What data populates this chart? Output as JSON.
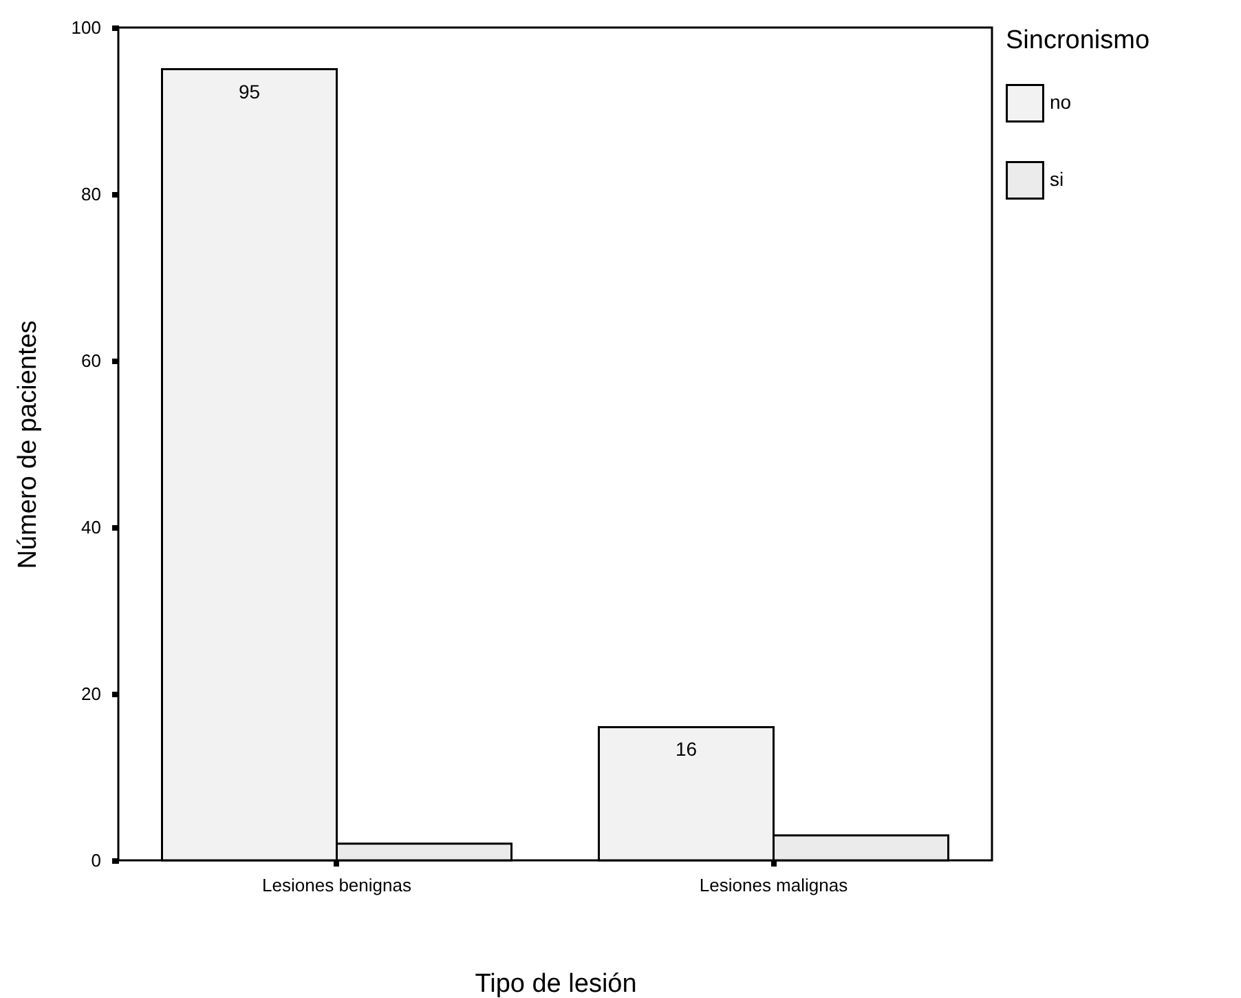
{
  "chart_data": {
    "type": "bar",
    "xlabel": "Tipo de lesión",
    "ylabel": "Número de pacientes",
    "legend_title": "Sincronismo",
    "legend": "right",
    "grid": false,
    "categories": [
      "Lesiones benignas",
      "Lesiones malignas"
    ],
    "ylim": [
      0,
      100
    ],
    "yticks": [
      0,
      20,
      40,
      60,
      80,
      100
    ],
    "series": [
      {
        "name": "no",
        "color": "#f2f2f2",
        "values": [
          95,
          16
        ],
        "value_labels": [
          "95",
          "16"
        ]
      },
      {
        "name": "si",
        "color": "#ebebeb",
        "values": [
          2,
          3
        ],
        "value_labels": [
          null,
          null
        ]
      }
    ]
  }
}
